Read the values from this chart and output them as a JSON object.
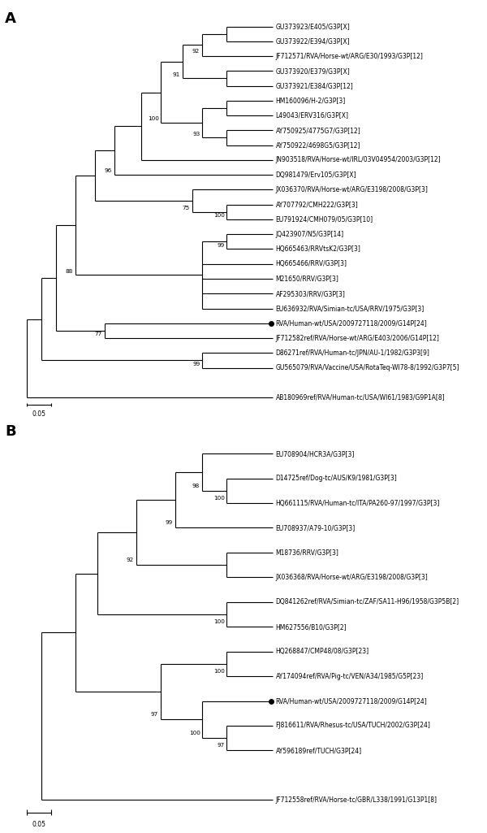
{
  "panel_A": {
    "leaves": [
      {
        "label": "GU373923/E405/G3P[X]",
        "y": 25
      },
      {
        "label": "GU373922/E394/G3P[X]",
        "y": 24
      },
      {
        "label": "JF712571/RVA/Horse-wt/ARG/E30/1993/G3P[12]",
        "y": 23
      },
      {
        "label": "GU373920/E379/G3P[X]",
        "y": 22
      },
      {
        "label": "GU373921/E384/G3P[12]",
        "y": 21
      },
      {
        "label": "HM160096/H-2/G3P[3]",
        "y": 20
      },
      {
        "label": "L49043/ERV316/G3P[X]",
        "y": 19
      },
      {
        "label": "AY750925/4775G7/G3P[12]",
        "y": 18
      },
      {
        "label": "AY750922/4698G5/G3P[12]",
        "y": 17
      },
      {
        "label": "JN903518/RVA/Horse-wt/IRL/03V04954/2003/G3P[12]",
        "y": 16
      },
      {
        "label": "DQ981479/Erv105/G3P[X]",
        "y": 15
      },
      {
        "label": "JX036370/RVA/Horse-wt/ARG/E3198/2008/G3P[3]",
        "y": 14
      },
      {
        "label": "AY707792/CMH222/G3P[3]",
        "y": 13
      },
      {
        "label": "EU791924/CMH079/05/G3P[10]",
        "y": 12
      },
      {
        "label": "JQ423907/N5/G3P[14]",
        "y": 11
      },
      {
        "label": "HQ665463/RRVtsK2/G3P[3]",
        "y": 10
      },
      {
        "label": "HQ665466/RRV/G3P[3]",
        "y": 9
      },
      {
        "label": "M21650/RRV/G3P[3]",
        "y": 8
      },
      {
        "label": "AF295303/RRV/G3P[3]",
        "y": 7
      },
      {
        "label": "EU636932/RVA/Simian-tc/USA/RRV/1975/G3P[3]",
        "y": 6
      },
      {
        "label": "RVA/Human-wt/USA/2009727118/2009/G14P[24]",
        "y": 5,
        "bold_dot": true
      },
      {
        "label": "JF712582ref/RVA/Horse-wt/ARG/E403/2006/G14P[12]",
        "y": 4
      },
      {
        "label": "D86271ref/RVA/Human-tc/JPN/AU-1/1982/G3P3[9]",
        "y": 3
      },
      {
        "label": "GU565079/RVA/Vaccine/USA/RotaTeq-WI78-8/1992/G3P7[5]",
        "y": 2
      },
      {
        "label": "AB180969ref/RVA/Human-tc/USA/WI61/1983/G9P1A[8]",
        "y": 0
      }
    ]
  },
  "panel_B": {
    "leaves": [
      {
        "label": "EU708904/HCR3A/G3P[3]",
        "y": 14
      },
      {
        "label": "D14725ref/Dog-tc/AUS/K9/1981/G3P[3]",
        "y": 13
      },
      {
        "label": "HQ661115/RVA/Human-tc/ITA/PA260-97/1997/G3P[3]",
        "y": 12
      },
      {
        "label": "EU708937/A79-10/G3P[3]",
        "y": 11
      },
      {
        "label": "M18736/RRV/G3P[3]",
        "y": 10
      },
      {
        "label": "JX036368/RVA/Horse-wt/ARG/E3198/2008/G3P[3]",
        "y": 9
      },
      {
        "label": "DQ841262ref/RVA/Simian-tc/ZAF/SA11-H96/1958/G3P5B[2]",
        "y": 8
      },
      {
        "label": "HM627556/B10/G3P[2]",
        "y": 7
      },
      {
        "label": "HQ268847/CMP48/08/G3P[23]",
        "y": 6
      },
      {
        "label": "AY174094ref/RVA/Pig-tc/VEN/A34/1985/G5P[23]",
        "y": 5
      },
      {
        "label": "RVA/Human-wt/USA/2009727118/2009/G14P[24]",
        "y": 4,
        "bold_dot": true
      },
      {
        "label": "FJ816611/RVA/Rhesus-tc/USA/TUCH/2002/G3P[24]",
        "y": 3
      },
      {
        "label": "AY596189ref/TUCH/G3P[24]",
        "y": 2
      },
      {
        "label": "JF712558ref/RVA/Horse-tc/GBR/L338/1991/G13P1[8]",
        "y": 0
      }
    ]
  },
  "font_size_labels": 5.5,
  "font_size_nodes": 5.2,
  "font_size_panel": 13,
  "line_width": 0.8,
  "line_color": "#000000",
  "background_color": "#ffffff"
}
